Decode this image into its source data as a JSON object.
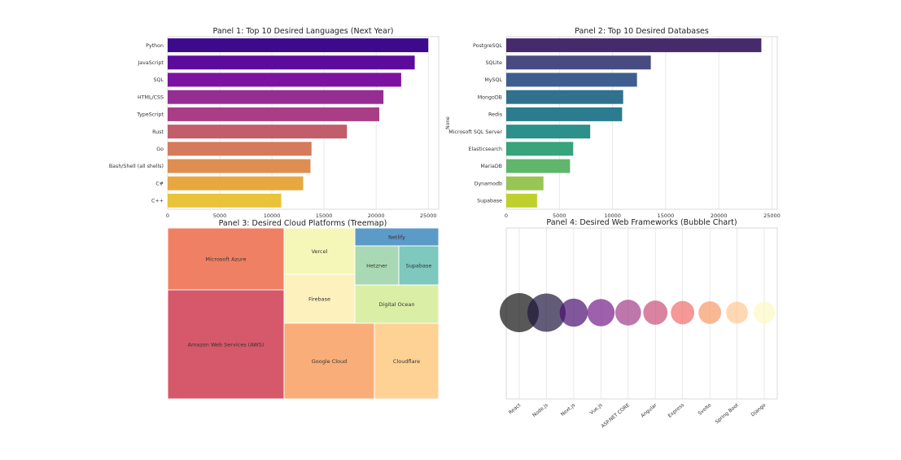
{
  "chart_data": [
    {
      "type": "bar",
      "orientation": "horizontal",
      "title": "Panel 1: Top 10 Desired Languages (Next Year)",
      "xlabel": "",
      "ylabel": "",
      "categories": [
        "Python",
        "JavaScript",
        "SQL",
        "HTML/CSS",
        "TypeScript",
        "Rust",
        "Go",
        "Bash/Shell (all shells)",
        "C#",
        "C++"
      ],
      "values": [
        25000,
        23700,
        22400,
        20700,
        20300,
        17200,
        13800,
        13700,
        13000,
        10900
      ],
      "xlim": [
        0,
        26000
      ],
      "xticks": [
        0,
        5000,
        10000,
        15000,
        20000,
        25000
      ],
      "xtick_labels": [
        "0",
        "5000",
        "10000",
        "15000",
        "20000",
        "25000"
      ],
      "colors": [
        "#3d0a8c",
        "#5c0b9c",
        "#7d12a0",
        "#952d93",
        "#a93d86",
        "#c25d6c",
        "#d57a5b",
        "#df8e51",
        "#e6a83f",
        "#e9c33a"
      ],
      "grid": true
    },
    {
      "type": "bar",
      "orientation": "horizontal",
      "title": "Panel 2: Top 10 Desired Databases",
      "xlabel": "",
      "ylabel": "None",
      "categories": [
        "PostgreSQL",
        "SQLite",
        "MySQL",
        "MongoDB",
        "Redis",
        "Microsoft SQL Server",
        "Elasticsearch",
        "MariaDB",
        "Dynamodb",
        "Supabase"
      ],
      "values": [
        24000,
        13600,
        12300,
        11000,
        10900,
        7900,
        6300,
        6000,
        3500,
        2900
      ],
      "xlim": [
        0,
        25500
      ],
      "xticks": [
        0,
        5000,
        10000,
        15000,
        20000,
        25000
      ],
      "xtick_labels": [
        "0",
        "5000",
        "10000",
        "15000",
        "20000",
        "25000"
      ],
      "colors": [
        "#462b6c",
        "#474b82",
        "#3d5e8f",
        "#30718e",
        "#2a7c8e",
        "#2b918a",
        "#37a47c",
        "#60b66a",
        "#97c654",
        "#bfd02e"
      ],
      "grid": true
    },
    {
      "type": "treemap",
      "title": "Panel 3: Desired Cloud Platforms (Treemap)",
      "items": [
        {
          "label": "Amazon Web Services (AWS)",
          "color": "#d6586b"
        },
        {
          "label": "Microsoft Azure",
          "color": "#f08064"
        },
        {
          "label": "Google Cloud",
          "color": "#f9ae7a"
        },
        {
          "label": "Cloudflare",
          "color": "#fdd294"
        },
        {
          "label": "Vercel",
          "color": "#f5f7b8"
        },
        {
          "label": "Firebase",
          "color": "#fdf1be"
        },
        {
          "label": "Digital Ocean",
          "color": "#dbeea6"
        },
        {
          "label": "Netlify",
          "color": "#5c9ac8"
        },
        {
          "label": "Hetzner",
          "color": "#a9d9b4"
        },
        {
          "label": "Supabase",
          "color": "#7ec8bd"
        }
      ]
    },
    {
      "type": "scatter",
      "subtype": "bubble",
      "title": "Panel 4: Desired Web Frameworks (Bubble Chart)",
      "categories": [
        "React",
        "Node.js",
        "Next.js",
        "Vue.js",
        "ASP.NET CORE",
        "Angular",
        "Express",
        "Svelte",
        "Spring Boot",
        "Django"
      ],
      "y": [
        0,
        0,
        0,
        0,
        0,
        0,
        0,
        0,
        0,
        0
      ],
      "sizes": [
        1.0,
        0.98,
        0.72,
        0.7,
        0.66,
        0.62,
        0.6,
        0.58,
        0.56,
        0.55
      ],
      "colors": [
        "#111111",
        "#1f173f",
        "#4a0f70",
        "#751d8a",
        "#a13d88",
        "#cb4f79",
        "#ef6c6c",
        "#f79a66",
        "#fdc891",
        "#fcf8c4"
      ],
      "opacity": 0.7,
      "grid": true
    }
  ]
}
